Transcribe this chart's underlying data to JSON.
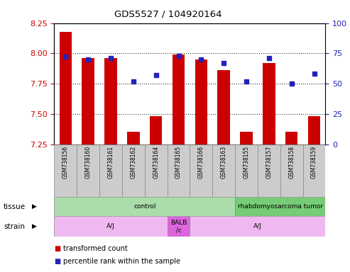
{
  "title": "GDS5527 / 104920164",
  "samples": [
    "GSM738156",
    "GSM738160",
    "GSM738161",
    "GSM738162",
    "GSM738164",
    "GSM738165",
    "GSM738166",
    "GSM738163",
    "GSM738155",
    "GSM738157",
    "GSM738158",
    "GSM738159"
  ],
  "red_values": [
    8.18,
    7.96,
    7.96,
    7.35,
    7.48,
    7.99,
    7.95,
    7.86,
    7.35,
    7.92,
    7.35,
    7.48
  ],
  "blue_values": [
    72,
    70,
    71,
    52,
    57,
    73,
    70,
    67,
    52,
    71,
    50,
    58
  ],
  "ylim_left": [
    7.25,
    8.25
  ],
  "ylim_right": [
    0,
    100
  ],
  "yticks_left": [
    7.25,
    7.5,
    7.75,
    8.0,
    8.25
  ],
  "yticks_right": [
    0,
    25,
    50,
    75,
    100
  ],
  "baseline": 7.25,
  "bar_color": "#cc0000",
  "dot_color": "#2222bb",
  "tissue_groups": [
    {
      "label": "control",
      "start": 0,
      "end": 8,
      "color": "#aaddaa"
    },
    {
      "label": "rhabdomyosarcoma tumor",
      "start": 8,
      "end": 12,
      "color": "#77cc77"
    }
  ],
  "strain_groups": [
    {
      "label": "A/J",
      "start": 0,
      "end": 5,
      "color": "#f0b8f0"
    },
    {
      "label": "BALB\n/c",
      "start": 5,
      "end": 6,
      "color": "#dd66dd"
    },
    {
      "label": "A/J",
      "start": 6,
      "end": 12,
      "color": "#f0b8f0"
    }
  ],
  "legend_red": "transformed count",
  "legend_blue": "percentile rank within the sample",
  "tissue_label": "tissue",
  "strain_label": "strain",
  "left_label_color": "#cc0000",
  "right_label_color": "#2222bb",
  "sample_bg": "#cccccc",
  "grid_color": "#333333"
}
